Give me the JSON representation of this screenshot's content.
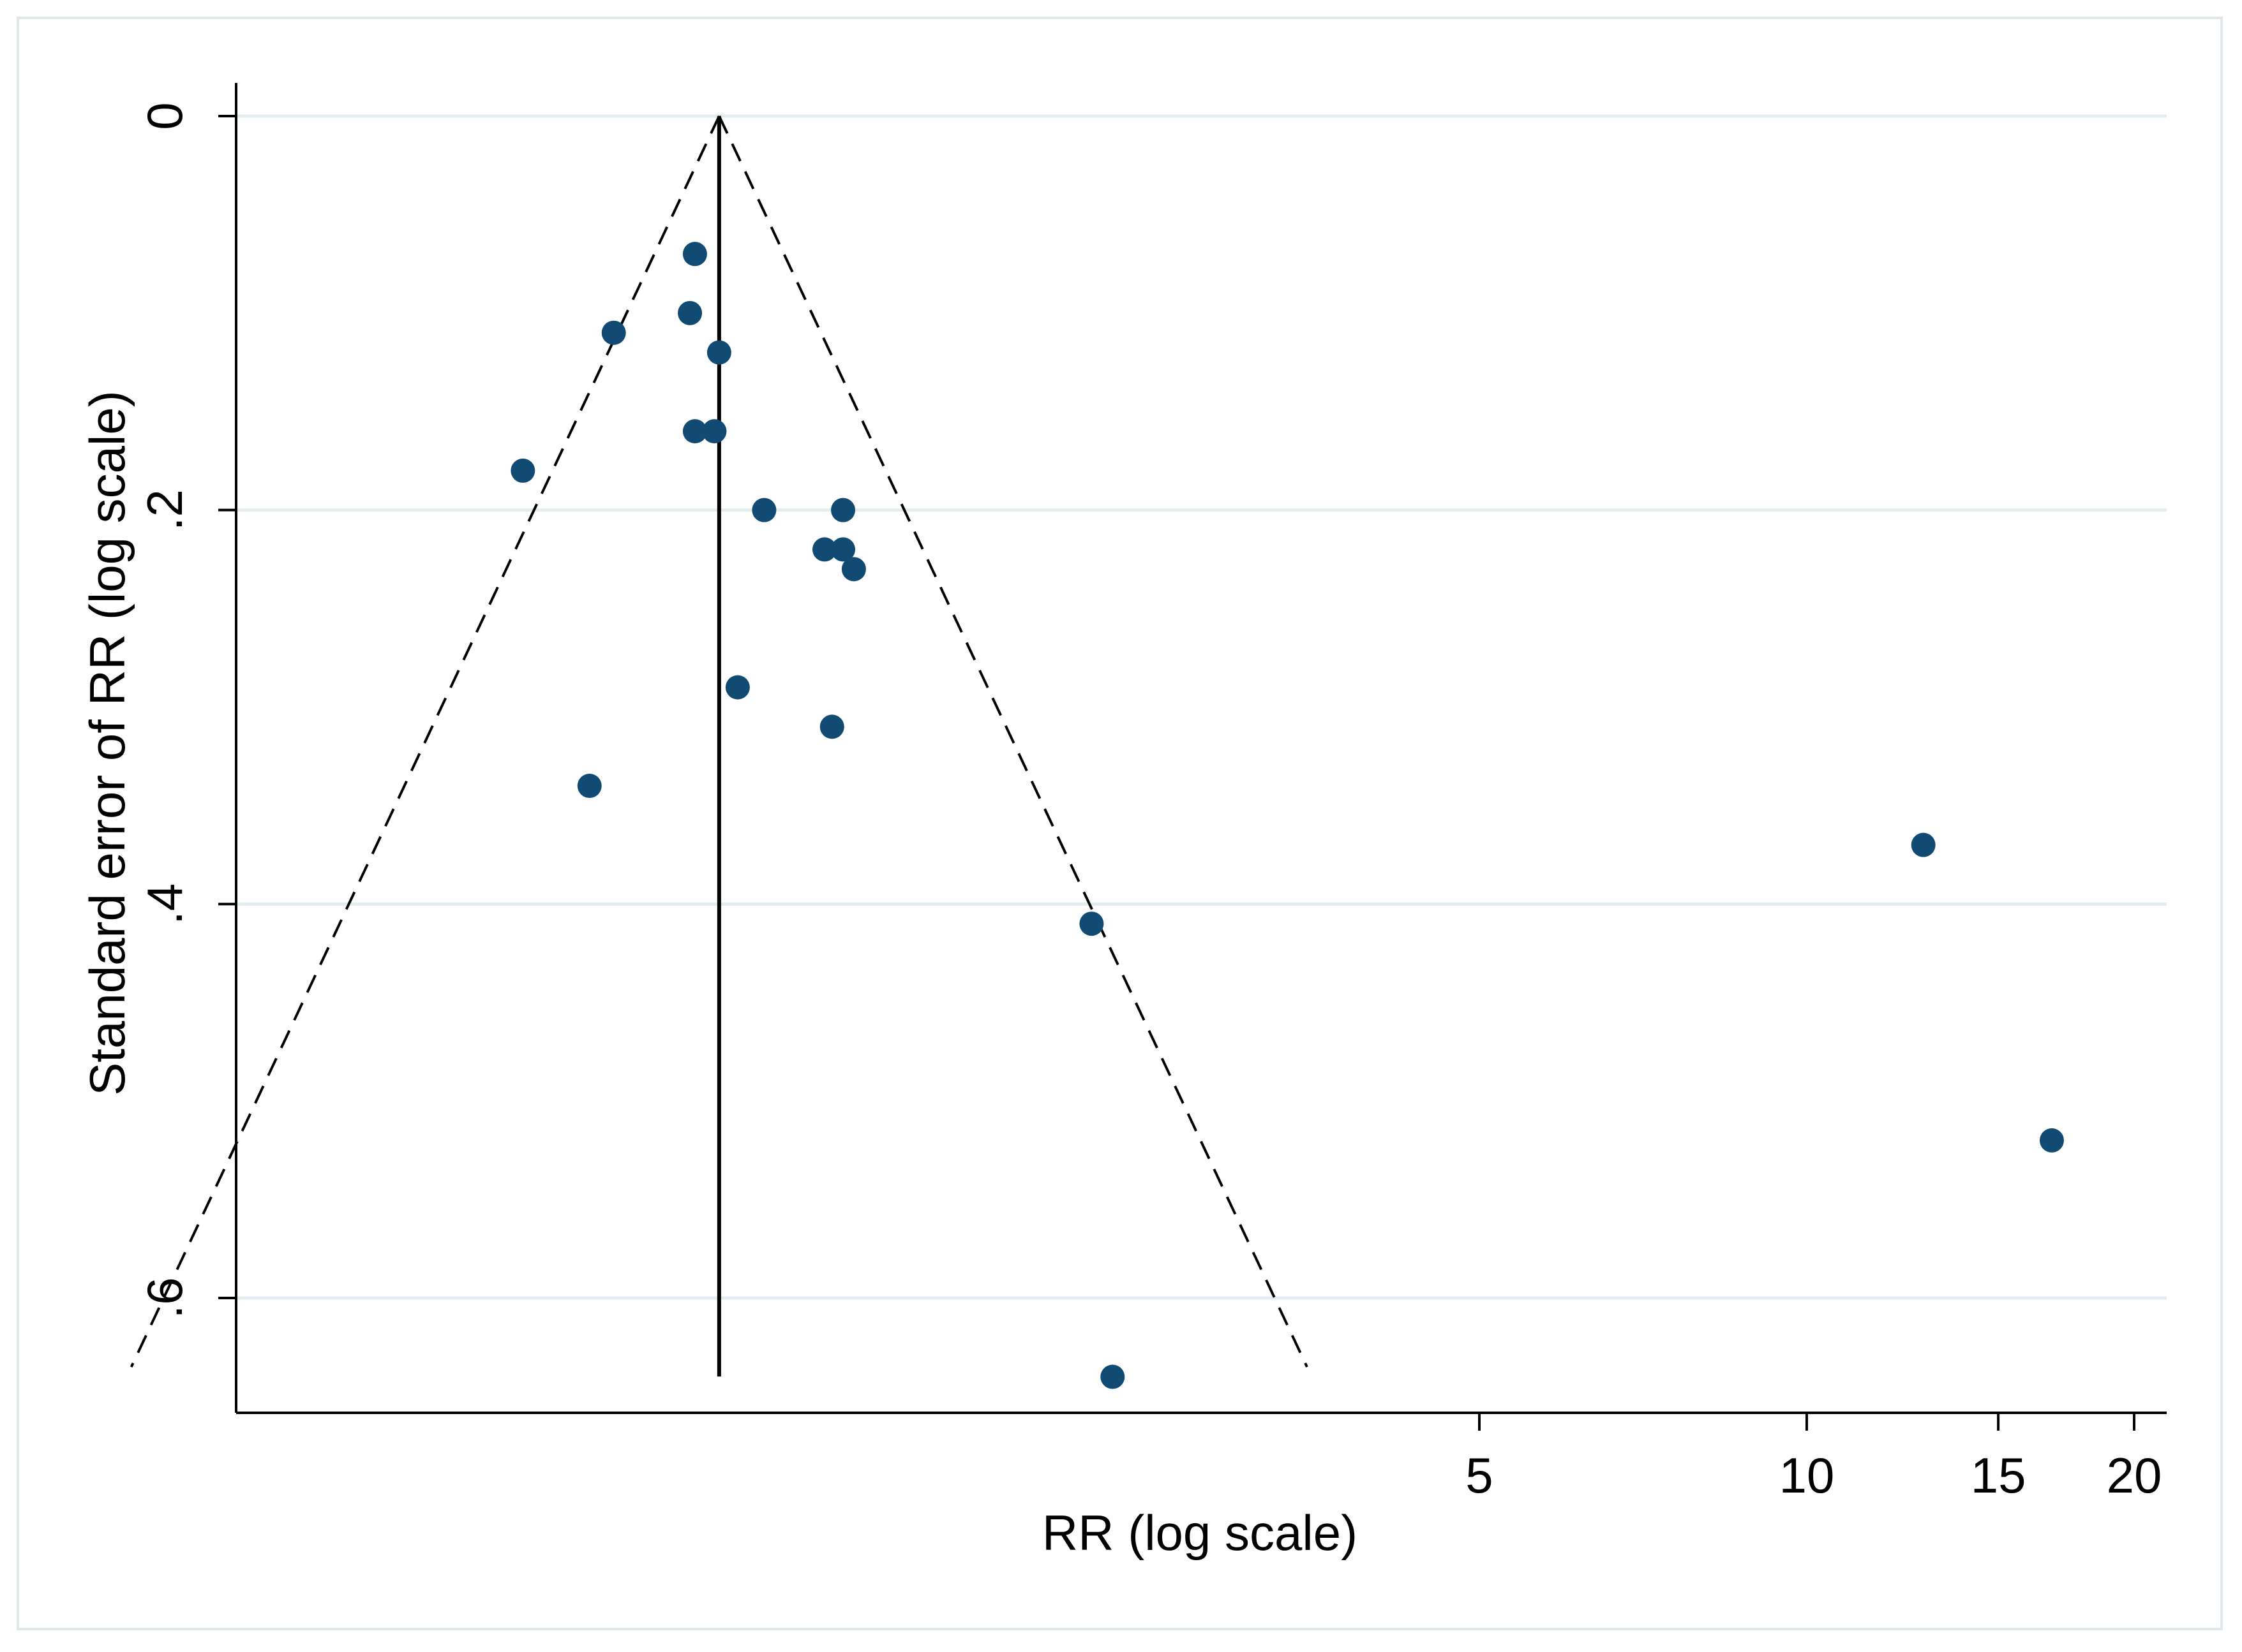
{
  "chart_data": {
    "type": "scatter",
    "title": "",
    "xlabel": "RR (log scale)",
    "ylabel": "Standard error of RR (log scale)",
    "x_scale": "log",
    "y_reversed": true,
    "xlim": [
      0.35,
      22
    ],
    "ylim": [
      0,
      0.66
    ],
    "x_ticks": [
      5,
      10,
      15,
      20
    ],
    "x_tick_labels": [
      "5",
      "10",
      "15",
      "20"
    ],
    "y_ticks": [
      0,
      0.2,
      0.4,
      0.6
    ],
    "y_tick_labels": [
      "0",
      ".2",
      ".4",
      ".6"
    ],
    "grid": "horizontal",
    "pooled_estimate": 1.0,
    "pseudo_ci_se_max": 0.635,
    "colors": {
      "points": "#114b73",
      "grid": "#e3edf0",
      "lines": "#000000"
    },
    "points": [
      {
        "rr": 0.95,
        "se": 0.07
      },
      {
        "rr": 0.94,
        "se": 0.1
      },
      {
        "rr": 0.8,
        "se": 0.11
      },
      {
        "rr": 1.0,
        "se": 0.12
      },
      {
        "rr": 0.95,
        "se": 0.16
      },
      {
        "rr": 0.99,
        "se": 0.16
      },
      {
        "rr": 0.66,
        "se": 0.18
      },
      {
        "rr": 1.1,
        "se": 0.2
      },
      {
        "rr": 1.3,
        "se": 0.2
      },
      {
        "rr": 1.25,
        "se": 0.22
      },
      {
        "rr": 1.3,
        "se": 0.22
      },
      {
        "rr": 1.33,
        "se": 0.23
      },
      {
        "rr": 1.04,
        "se": 0.29
      },
      {
        "rr": 1.27,
        "se": 0.31
      },
      {
        "rr": 0.76,
        "se": 0.34
      },
      {
        "rr": 12.8,
        "se": 0.37
      },
      {
        "rr": 2.2,
        "se": 0.41
      },
      {
        "rr": 16.8,
        "se": 0.52
      },
      {
        "rr": 2.3,
        "se": 0.64
      }
    ]
  }
}
